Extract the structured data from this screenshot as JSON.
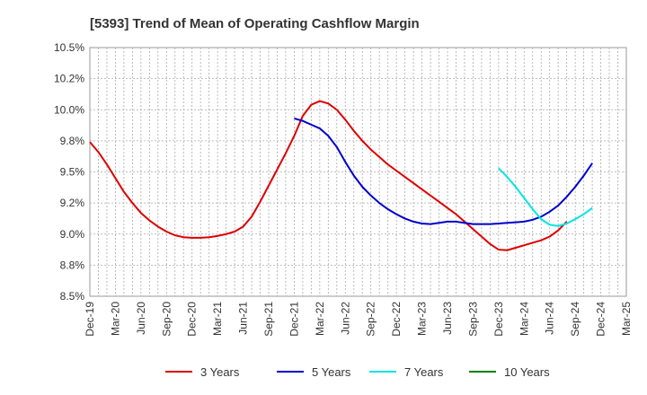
{
  "chart_data": {
    "type": "line",
    "title": "[5393]  Trend of Mean of Operating Cashflow Margin",
    "xlabel": "",
    "ylabel": "",
    "ylim": [
      8.5,
      10.5
    ],
    "yticks": [
      "8.5%",
      "8.8%",
      "9.0%",
      "9.2%",
      "9.5%",
      "9.8%",
      "10.0%",
      "10.2%",
      "10.5%"
    ],
    "ytick_values": [
      8.5,
      8.75,
      9.0,
      9.25,
      9.5,
      9.75,
      10.0,
      10.25,
      10.5
    ],
    "xticks": [
      "Dec-19",
      "Mar-20",
      "Jun-20",
      "Sep-20",
      "Dec-20",
      "Mar-21",
      "Jun-21",
      "Sep-21",
      "Dec-21",
      "Mar-22",
      "Jun-22",
      "Sep-22",
      "Dec-22",
      "Mar-23",
      "Jun-23",
      "Sep-23",
      "Dec-23",
      "Mar-24",
      "Jun-24",
      "Sep-24",
      "Dec-24",
      "Mar-25"
    ],
    "grid": true,
    "legend_position": "bottom",
    "series": [
      {
        "name": "3 Years",
        "color": "#dd0000",
        "start_index": 0,
        "values": [
          9.74,
          9.66,
          9.56,
          9.45,
          9.34,
          9.25,
          9.17,
          9.11,
          9.06,
          9.02,
          8.99,
          8.975,
          8.97,
          8.97,
          8.975,
          8.985,
          9.0,
          9.02,
          9.06,
          9.14,
          9.26,
          9.39,
          9.52,
          9.65,
          9.79,
          9.95,
          10.04,
          10.07,
          10.05,
          10.0,
          9.92,
          9.83,
          9.75,
          9.68,
          9.62,
          9.56,
          9.51,
          9.46,
          9.41,
          9.36,
          9.31,
          9.26,
          9.21,
          9.16,
          9.1,
          9.04,
          8.98,
          8.92,
          8.875,
          8.87,
          8.89,
          8.91,
          8.93,
          8.95,
          8.98,
          9.03,
          9.1
        ]
      },
      {
        "name": "5 Years",
        "color": "#0000cc",
        "start_index": 24,
        "values": [
          9.93,
          9.91,
          9.88,
          9.85,
          9.79,
          9.7,
          9.58,
          9.47,
          9.38,
          9.31,
          9.25,
          9.2,
          9.16,
          9.125,
          9.1,
          9.085,
          9.08,
          9.09,
          9.1,
          9.1,
          9.09,
          9.08,
          9.08,
          9.08,
          9.085,
          9.09,
          9.095,
          9.1,
          9.115,
          9.14,
          9.18,
          9.23,
          9.3,
          9.38,
          9.47,
          9.57
        ]
      },
      {
        "name": "7 Years",
        "color": "#00e5e5",
        "start_index": 48,
        "values": [
          9.53,
          9.46,
          9.38,
          9.29,
          9.2,
          9.12,
          9.075,
          9.065,
          9.085,
          9.12,
          9.16,
          9.21
        ]
      },
      {
        "name": "10 Years",
        "color": "#008000",
        "start_index": 0,
        "values": []
      }
    ]
  }
}
